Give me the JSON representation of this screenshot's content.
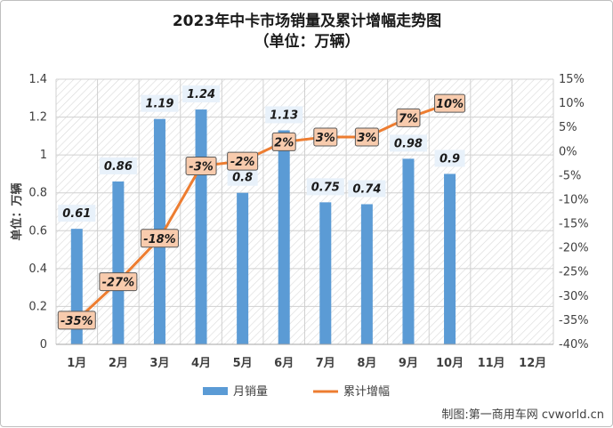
{
  "chart_data": {
    "type": "bar",
    "title": "2023年中卡市场销量及累计增幅走势图",
    "subtitle": "（单位：万辆）",
    "ylabel": "单位：万辆",
    "categories": [
      "1月",
      "2月",
      "3月",
      "4月",
      "5月",
      "6月",
      "7月",
      "8月",
      "9月",
      "10月",
      "11月",
      "12月"
    ],
    "series": [
      {
        "name": "月销量",
        "type": "bar",
        "axis": "left",
        "color": "#5b9bd5",
        "values": [
          0.61,
          0.86,
          1.19,
          1.24,
          0.8,
          1.13,
          0.75,
          0.74,
          0.98,
          0.9,
          null,
          null
        ],
        "labels": [
          "0.61",
          "0.86",
          "1.19",
          "1.24",
          "0.8",
          "1.13",
          "0.75",
          "0.74",
          "0.98",
          "0.9",
          "",
          ""
        ]
      },
      {
        "name": "累计增幅",
        "type": "line",
        "axis": "right",
        "color": "#ed7d31",
        "values": [
          -35,
          -27,
          -18,
          -3,
          -2,
          2,
          3,
          3,
          7,
          10,
          null,
          null
        ],
        "labels": [
          "-35%",
          "-27%",
          "-18%",
          "-3%",
          "-2%",
          "2%",
          "3%",
          "3%",
          "7%",
          "10%",
          "",
          ""
        ]
      }
    ],
    "ylim": [
      0,
      1.4
    ],
    "y_ticks": [
      "0",
      "0.2",
      "0.4",
      "0.6",
      "0.8",
      "1",
      "1.2",
      "1.4"
    ],
    "y2lim": [
      -40,
      15
    ],
    "y2_ticks": [
      "-40%",
      "-35%",
      "-30%",
      "-25%",
      "-20%",
      "-15%",
      "-10%",
      "-5%",
      "0%",
      "5%",
      "10%",
      "15%"
    ],
    "legend_position": "bottom",
    "grid": true
  },
  "source": "制图:第一商用车网 cvworld.cn"
}
